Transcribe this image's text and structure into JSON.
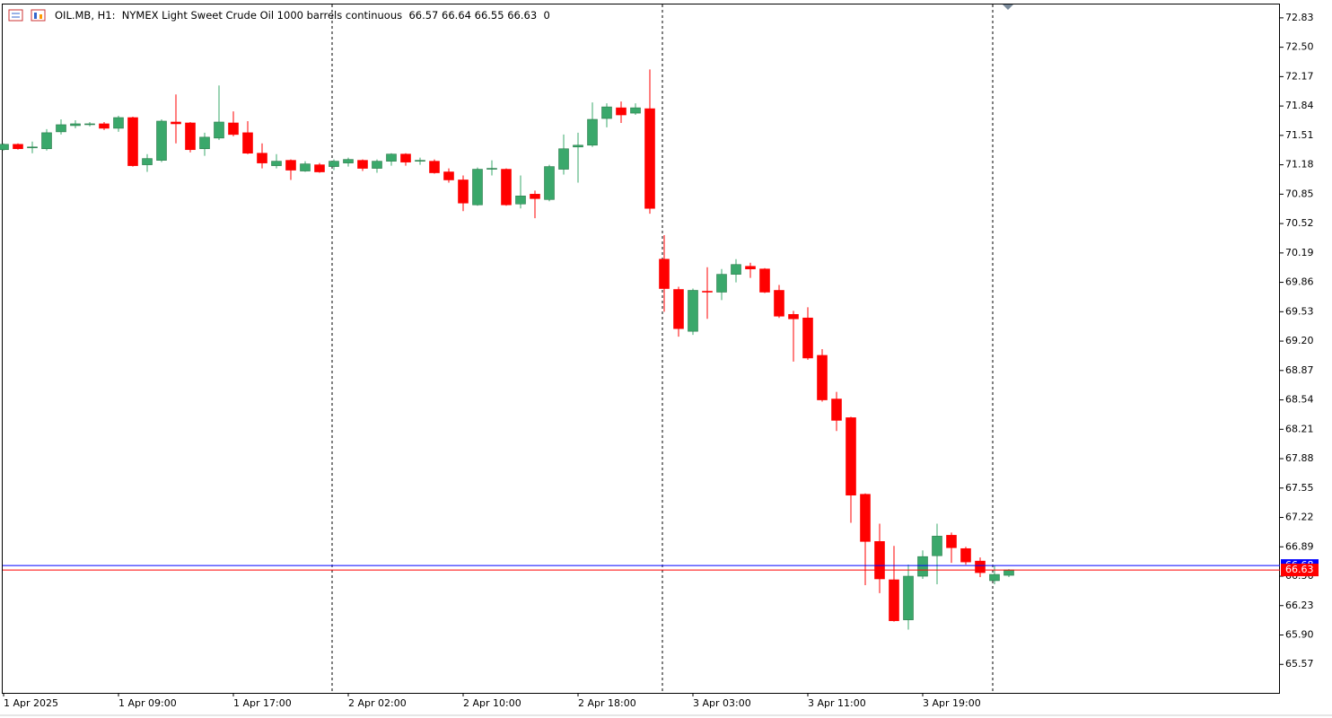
{
  "chart_data": {
    "type": "candlestick",
    "symbol": "OIL.MB, H1:",
    "description": "NYMEX Light Sweet Crude Oil 1000 barrels continuous",
    "spread": 0,
    "categories": [
      "1 Apr 2025",
      null,
      null,
      null,
      null,
      null,
      null,
      null,
      "1 Apr 09:00",
      null,
      null,
      null,
      null,
      null,
      null,
      null,
      "1 Apr 17:00",
      null,
      null,
      null,
      null,
      null,
      null,
      null,
      "2 Apr 02:00",
      null,
      null,
      null,
      null,
      null,
      null,
      null,
      "2 Apr 10:00",
      null,
      null,
      null,
      null,
      null,
      null,
      null,
      "2 Apr 18:00",
      null,
      null,
      null,
      null,
      null,
      null,
      null,
      "3 Apr 03:00",
      null,
      null,
      null,
      null,
      null,
      null,
      null,
      "3 Apr 11:00",
      null,
      null,
      null,
      null,
      null,
      null,
      null,
      "3 Apr 19:00",
      null,
      null,
      null,
      null,
      null,
      null
    ],
    "open": [
      71.35,
      71.41,
      71.37,
      71.36,
      71.55,
      71.62,
      71.63,
      71.64,
      71.59,
      71.71,
      71.18,
      71.23,
      71.66,
      71.65,
      71.36,
      71.48,
      71.65,
      71.54,
      71.31,
      71.17,
      71.23,
      71.11,
      71.18,
      71.16,
      71.2,
      71.23,
      71.14,
      71.22,
      71.3,
      71.22,
      71.22,
      71.1,
      71.01,
      70.73,
      71.13,
      71.13,
      70.74,
      70.85,
      70.79,
      71.13,
      71.38,
      71.4,
      71.7,
      71.82,
      71.76,
      71.81,
      70.12,
      69.78,
      69.31,
      69.76,
      69.75,
      69.95,
      70.04,
      70.01,
      69.77,
      69.5,
      69.46,
      69.04,
      68.55,
      68.34,
      67.48,
      66.95,
      66.52,
      66.07,
      66.56,
      66.79,
      67.02,
      66.87,
      66.73,
      66.51,
      66.57
    ],
    "high": [
      71.42,
      71.42,
      71.44,
      71.58,
      71.69,
      71.68,
      71.66,
      71.66,
      71.73,
      71.72,
      71.3,
      71.69,
      71.97,
      71.66,
      71.54,
      72.07,
      71.78,
      71.67,
      71.42,
      71.3,
      71.24,
      71.22,
      71.2,
      71.24,
      71.26,
      71.24,
      71.24,
      71.31,
      71.31,
      71.26,
      71.24,
      71.14,
      71.06,
      71.15,
      71.23,
      71.14,
      71.06,
      70.89,
      71.18,
      71.52,
      71.54,
      71.88,
      71.87,
      71.89,
      71.87,
      72.25,
      70.39,
      69.81,
      69.79,
      70.03,
      70.01,
      70.12,
      70.08,
      70.02,
      69.83,
      69.54,
      69.58,
      69.11,
      68.63,
      68.35,
      67.49,
      67.15,
      66.9,
      66.69,
      66.85,
      67.15,
      67.05,
      66.89,
      66.77,
      66.68,
      66.64
    ],
    "low": [
      71.34,
      71.35,
      71.31,
      71.34,
      71.52,
      71.59,
      71.61,
      71.57,
      71.55,
      71.16,
      71.1,
      71.21,
      71.42,
      71.32,
      71.28,
      71.46,
      71.5,
      71.3,
      71.14,
      71.14,
      71.01,
      71.1,
      71.09,
      71.12,
      71.16,
      71.11,
      71.09,
      71.17,
      71.17,
      71.18,
      71.08,
      70.98,
      70.66,
      70.72,
      71.06,
      70.72,
      70.69,
      70.58,
      70.77,
      71.07,
      70.98,
      71.38,
      71.6,
      71.65,
      71.74,
      70.63,
      69.53,
      69.25,
      69.27,
      69.45,
      69.66,
      69.86,
      69.91,
      69.74,
      69.46,
      68.97,
      68.99,
      68.52,
      68.19,
      67.16,
      66.46,
      66.37,
      66.05,
      65.96,
      66.53,
      66.47,
      66.71,
      66.69,
      66.55,
      66.47,
      66.55
    ],
    "close": [
      71.41,
      71.36,
      71.38,
      71.54,
      71.63,
      71.64,
      71.64,
      71.59,
      71.71,
      71.17,
      71.25,
      71.67,
      71.64,
      71.35,
      71.49,
      71.66,
      71.52,
      71.31,
      71.2,
      71.22,
      71.12,
      71.19,
      71.1,
      71.22,
      71.24,
      71.14,
      71.22,
      71.3,
      71.21,
      71.23,
      71.09,
      71.01,
      70.75,
      71.13,
      71.14,
      70.73,
      70.83,
      70.8,
      71.16,
      71.36,
      71.4,
      71.69,
      71.83,
      71.74,
      71.82,
      70.69,
      69.79,
      69.34,
      69.77,
      69.75,
      69.95,
      70.06,
      70.01,
      69.75,
      69.48,
      69.45,
      69.01,
      68.54,
      68.31,
      67.47,
      66.95,
      66.53,
      66.06,
      66.56,
      66.78,
      67.01,
      66.88,
      66.72,
      66.6,
      66.58,
      66.63
    ],
    "up_color": "#3aa86b",
    "down_color": "#ff0000",
    "bid": 66.63,
    "bid_color": "#ff0000",
    "ask": 66.68,
    "ask_color": "#0000ff",
    "ylim": [
      65.25,
      72.98
    ],
    "yticks": [
      72.83,
      {
        "value": 72.5,
        "label": "72.50"
      },
      72.17,
      71.84,
      71.51,
      71.18,
      70.85,
      70.52,
      70.19,
      69.86,
      69.53,
      {
        "value": 69.2,
        "label": "69.20"
      },
      68.87,
      68.54,
      68.21,
      67.88,
      67.55,
      67.22,
      66.89,
      66.56,
      66.23,
      {
        "value": 65.9,
        "label": "65.90"
      },
      65.57
    ]
  }
}
